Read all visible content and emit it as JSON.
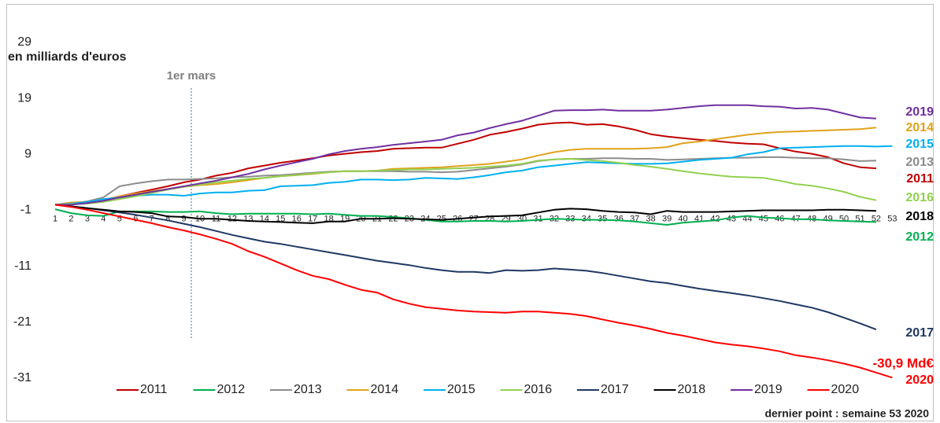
{
  "chart_data": {
    "type": "line",
    "y_label": "en milliards d'euros",
    "categories": [
      "1",
      "2",
      "3",
      "4",
      "5",
      "6",
      "7",
      "8",
      "9",
      "10",
      "11",
      "12",
      "13",
      "14",
      "15",
      "16",
      "17",
      "18",
      "19",
      "20",
      "21",
      "22",
      "23",
      "24",
      "25",
      "26",
      "27",
      "28",
      "29",
      "30",
      "31",
      "32",
      "33",
      "34",
      "35",
      "36",
      "37",
      "38",
      "39",
      "40",
      "41",
      "42",
      "43",
      "44",
      "45",
      "46",
      "47",
      "48",
      "49",
      "50",
      "51",
      "52",
      "53"
    ],
    "ylim": [
      -31,
      29
    ],
    "yticks": [
      -31,
      -21,
      -11,
      -1,
      9,
      19,
      29
    ],
    "annotations": {
      "event": "1er mars",
      "last_value": "-30,9 Md€",
      "footnote": "dernier point : semaine 53 2020"
    },
    "series": [
      {
        "name": "2011",
        "color": "#c00000",
        "values": [
          0,
          0.2,
          0.4,
          0.8,
          1.5,
          2.1,
          2.7,
          3.3,
          4,
          4.5,
          5.2,
          5.7,
          6.5,
          7,
          7.5,
          7.9,
          8.3,
          8.8,
          9.1,
          9.4,
          9.6,
          10,
          10.1,
          10.2,
          10.2,
          10.9,
          11.6,
          12.5,
          13,
          13.6,
          14.3,
          14.6,
          14.7,
          14.3,
          14.4,
          14,
          13.4,
          12.6,
          12.2,
          11.9,
          11.6,
          11.4,
          11.1,
          10.9,
          10.8,
          10.1,
          9.5,
          9.1,
          8.5,
          7.4,
          6.7,
          6.5,
          null
        ]
      },
      {
        "name": "2012",
        "color": "#00b050",
        "values": [
          -0.8,
          -1.5,
          -1.9,
          -2,
          -1.2,
          -1.2,
          -1.2,
          -1.3,
          -1.3,
          -1.2,
          -1.5,
          -1.7,
          -1.6,
          -1.6,
          -1.6,
          -1.6,
          -1.7,
          -1.6,
          -1.8,
          -2,
          -2,
          -2.2,
          -2.4,
          -2.7,
          -3,
          -3,
          -2.9,
          -2.9,
          -3,
          -2.9,
          -2.7,
          -2.5,
          -2.6,
          -2.7,
          -2.7,
          -2.8,
          -3,
          -3.3,
          -3.6,
          -3.2,
          -3,
          -2.8,
          -2.3,
          -2,
          -2.3,
          -2.4,
          -2.6,
          -2.6,
          -2.8,
          -2.9,
          -3,
          -3.1,
          null
        ]
      },
      {
        "name": "2013",
        "color": "#8c8c8c",
        "values": [
          0,
          0.2,
          0.6,
          1.3,
          3.3,
          3.8,
          4.2,
          4.5,
          4.5,
          4.6,
          4.7,
          4.9,
          5,
          5.2,
          5.3,
          5.5,
          5.7,
          5.9,
          6,
          6,
          6,
          6,
          5.9,
          5.9,
          5.8,
          5.9,
          6.2,
          6.5,
          6.8,
          7.2,
          7.8,
          8.1,
          8.2,
          8.2,
          8.3,
          8.3,
          8.2,
          8.2,
          8,
          8.1,
          8.2,
          8.3,
          8.4,
          8.4,
          8.5,
          8.5,
          8.4,
          8.3,
          8.3,
          8.1,
          7.8,
          7.9,
          null
        ]
      },
      {
        "name": "2014",
        "color": "#e0a21b",
        "values": [
          0,
          0.4,
          0.5,
          0.9,
          1.5,
          2,
          2.4,
          2.8,
          3.2,
          3.5,
          3.7,
          4,
          4.4,
          4.8,
          5.1,
          5.3,
          5.5,
          5.8,
          6,
          6,
          6.1,
          6.4,
          6.5,
          6.6,
          6.7,
          6.9,
          7.1,
          7.3,
          7.7,
          8.1,
          8.8,
          9.4,
          9.8,
          10,
          10,
          10,
          10,
          10.1,
          10.3,
          11,
          11.3,
          11.7,
          12.1,
          12.5,
          12.8,
          13,
          13.1,
          13.2,
          13.3,
          13.4,
          13.5,
          13.8,
          null
        ]
      },
      {
        "name": "2015",
        "color": "#00b0f0",
        "values": [
          0,
          0.2,
          0.5,
          1,
          1.3,
          1.6,
          1.8,
          1.8,
          1.6,
          2,
          2.2,
          2.2,
          2.5,
          2.6,
          3.3,
          3.4,
          3.5,
          3.9,
          4.1,
          4.5,
          4.5,
          4.4,
          4.5,
          4.8,
          4.7,
          4.6,
          4.9,
          5.3,
          5.8,
          6.1,
          6.7,
          7,
          7.3,
          7.6,
          7.5,
          7.4,
          7.3,
          7.3,
          7.4,
          7.7,
          8,
          8.2,
          8.4,
          9,
          9.4,
          10.1,
          10.2,
          10.3,
          10.4,
          10.5,
          10.5,
          10.4,
          10.5
        ]
      },
      {
        "name": "2016",
        "color": "#92d050",
        "values": [
          0,
          0.1,
          0.2,
          0.5,
          1,
          1.5,
          2.1,
          2.7,
          3.2,
          3.6,
          4,
          4.3,
          4.6,
          4.8,
          5.1,
          5.3,
          5.6,
          5.8,
          6,
          6,
          6.1,
          6.2,
          6.3,
          6.3,
          6.4,
          6.5,
          6.6,
          6.8,
          7,
          7.3,
          7.9,
          8.1,
          8.2,
          8,
          7.8,
          7.5,
          7.1,
          6.8,
          6.4,
          6,
          5.6,
          5.3,
          5,
          4.9,
          4.8,
          4.3,
          3.7,
          3.4,
          2.9,
          2.3,
          1.4,
          0.8,
          null
        ]
      },
      {
        "name": "2017",
        "color": "#1f3864",
        "values": [
          0,
          -0.3,
          -0.6,
          -1,
          -1.4,
          -1.8,
          -2.3,
          -2.8,
          -3.4,
          -4,
          -4.7,
          -5.4,
          -6,
          -6.6,
          -7,
          -7.5,
          -8,
          -8.5,
          -9,
          -9.5,
          -10,
          -10.4,
          -10.8,
          -11.3,
          -11.7,
          -12,
          -12,
          -12.2,
          -11.7,
          -11.8,
          -11.7,
          -11.4,
          -11.6,
          -11.8,
          -12.2,
          -12.7,
          -13.2,
          -13.7,
          -14,
          -14.5,
          -15,
          -15.4,
          -15.8,
          -16.2,
          -16.7,
          -17.2,
          -17.8,
          -18.4,
          -19.2,
          -20.2,
          -21.2,
          -22.3,
          null
        ]
      },
      {
        "name": "2018",
        "color": "#000000",
        "values": [
          0,
          -0.3,
          -0.6,
          -0.9,
          -1.2,
          -1.3,
          -1.5,
          -2.1,
          -2.2,
          -2.5,
          -2.5,
          -2.7,
          -2.9,
          -3,
          -3.1,
          -3.2,
          -3.3,
          -3,
          -3,
          -2.5,
          -2.5,
          -2.4,
          -2.5,
          -2.6,
          -2.7,
          -2.5,
          -2.3,
          -2.1,
          -2,
          -1.9,
          -1.4,
          -0.9,
          -0.7,
          -0.8,
          -1.1,
          -1.3,
          -1.4,
          -1.7,
          -1.1,
          -1.3,
          -1.3,
          -1.3,
          -1.2,
          -1.1,
          -1,
          -1,
          -1,
          -1,
          -0.9,
          -0.9,
          -1,
          -1.1,
          null
        ]
      },
      {
        "name": "2019",
        "color": "#7030a0",
        "values": [
          0,
          0,
          0.3,
          0.7,
          1.3,
          1.8,
          2.3,
          2.8,
          3.3,
          3.8,
          4.3,
          4.9,
          5.5,
          6.3,
          7,
          7.6,
          8.2,
          9,
          9.6,
          10,
          10.3,
          10.7,
          11,
          11.3,
          11.6,
          12.4,
          12.9,
          13.7,
          14.4,
          15,
          15.9,
          16.8,
          16.9,
          16.9,
          17,
          16.8,
          16.8,
          16.8,
          17,
          17.3,
          17.6,
          17.8,
          17.8,
          17.8,
          17.6,
          17.5,
          17.2,
          17.3,
          17,
          16.3,
          15.6,
          15.4,
          null
        ]
      },
      {
        "name": "2020",
        "color": "#ff0000",
        "values": [
          0,
          -0.4,
          -0.9,
          -1.5,
          -2.1,
          -2.7,
          -3.3,
          -4,
          -4.6,
          -5.3,
          -6.1,
          -7,
          -8.3,
          -9.3,
          -10.5,
          -11.7,
          -12.7,
          -13.3,
          -14.3,
          -15.2,
          -15.7,
          -16.9,
          -17.7,
          -18.3,
          -18.6,
          -18.9,
          -19.1,
          -19.2,
          -19.3,
          -19.1,
          -19.1,
          -19.3,
          -19.5,
          -19.9,
          -20.5,
          -21.1,
          -21.6,
          -22.2,
          -22.9,
          -23.4,
          -24,
          -24.6,
          -25,
          -25.3,
          -25.7,
          -26.2,
          -26.9,
          -27.3,
          -27.8,
          -28.4,
          -29.1,
          -30,
          -30.9
        ]
      }
    ]
  }
}
